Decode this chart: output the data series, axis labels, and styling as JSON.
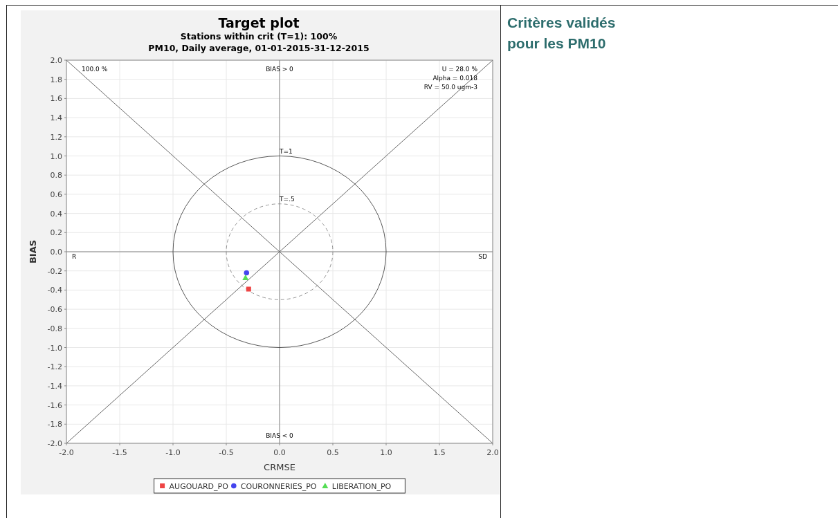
{
  "chart_data": {
    "type": "scatter",
    "title": "Target plot",
    "subtitle": "Stations within crit (T=1): 100%\nPM10, Daily average, 01-01-2015-31-12-2015",
    "xlabel": "CRMSE",
    "ylabel": "BIAS",
    "xlim": [
      -2,
      2
    ],
    "ylim": [
      -2,
      2
    ],
    "xticks": [
      {
        "value": -2,
        "label": "-2.0"
      },
      {
        "value": -1.5,
        "label": "-1.5"
      },
      {
        "value": -1,
        "label": "-1.0"
      },
      {
        "value": -0.5,
        "label": "-0.5"
      },
      {
        "value": 0,
        "label": "0.0"
      },
      {
        "value": 0.5,
        "label": "0.5"
      },
      {
        "value": 1,
        "label": "1.0"
      },
      {
        "value": 1.5,
        "label": "1.5"
      },
      {
        "value": 2,
        "label": "2.0"
      }
    ],
    "yticks": [
      {
        "value": -2,
        "label": "-2.0"
      },
      {
        "value": -1.8,
        "label": "-1.8"
      },
      {
        "value": -1.6,
        "label": "-1.6"
      },
      {
        "value": -1.4,
        "label": "-1.4"
      },
      {
        "value": -1.2,
        "label": "-1.2"
      },
      {
        "value": -1,
        "label": "-1.0"
      },
      {
        "value": -0.8,
        "label": "-0.8"
      },
      {
        "value": -0.6,
        "label": "-0.6"
      },
      {
        "value": -0.4,
        "label": "-0.4"
      },
      {
        "value": -0.2,
        "label": "-0.2"
      },
      {
        "value": 0,
        "label": "0.0"
      },
      {
        "value": 0.2,
        "label": "0.2"
      },
      {
        "value": 0.4,
        "label": "0.4"
      },
      {
        "value": 0.6,
        "label": "0.6"
      },
      {
        "value": 0.8,
        "label": "0.8"
      },
      {
        "value": 1,
        "label": "1.0"
      },
      {
        "value": 1.2,
        "label": "1.2"
      },
      {
        "value": 1.4,
        "label": "1.4"
      },
      {
        "value": 1.6,
        "label": "1.6"
      },
      {
        "value": 1.8,
        "label": "1.8"
      },
      {
        "value": 2,
        "label": "2.0"
      }
    ],
    "grid": true,
    "legend": "bottom",
    "series": [
      {
        "name": "AUGOUARD_PO",
        "color": "#ee4444",
        "marker": "square",
        "x": [
          -0.29
        ],
        "values": [
          -0.39
        ]
      },
      {
        "name": "COURONNERIES_PO",
        "color": "#4444ee",
        "marker": "circle",
        "x": [
          -0.31
        ],
        "values": [
          -0.22
        ]
      },
      {
        "name": "LIBERATION_PO",
        "color": "#55dd55",
        "marker": "triangle",
        "x": [
          -0.32
        ],
        "values": [
          -0.27
        ]
      },
      {
        "type": "line",
        "color": "#555555",
        "x": [
          -2,
          2
        ],
        "values": [
          2,
          -2
        ]
      },
      {
        "type": "line",
        "color": "#555555",
        "x": [
          -2,
          2
        ],
        "values": [
          -2,
          2
        ]
      },
      {
        "type": "line",
        "color": "#777777",
        "x": [
          0,
          0
        ],
        "values": [
          -2,
          2
        ]
      },
      {
        "type": "line",
        "color": "#777777",
        "x": [
          -2,
          2
        ],
        "values": [
          0,
          0
        ]
      }
    ],
    "annotations": [
      "100.0 %",
      "BIAS > 0",
      "U = 28.0 %",
      "Alpha = 0.018",
      "RV = 50.0 ugm-3",
      "R",
      "SD",
      "BIAS < 0",
      "T=1",
      "T=.5",
      "Critères validés\npour les PM10"
    ]
  }
}
